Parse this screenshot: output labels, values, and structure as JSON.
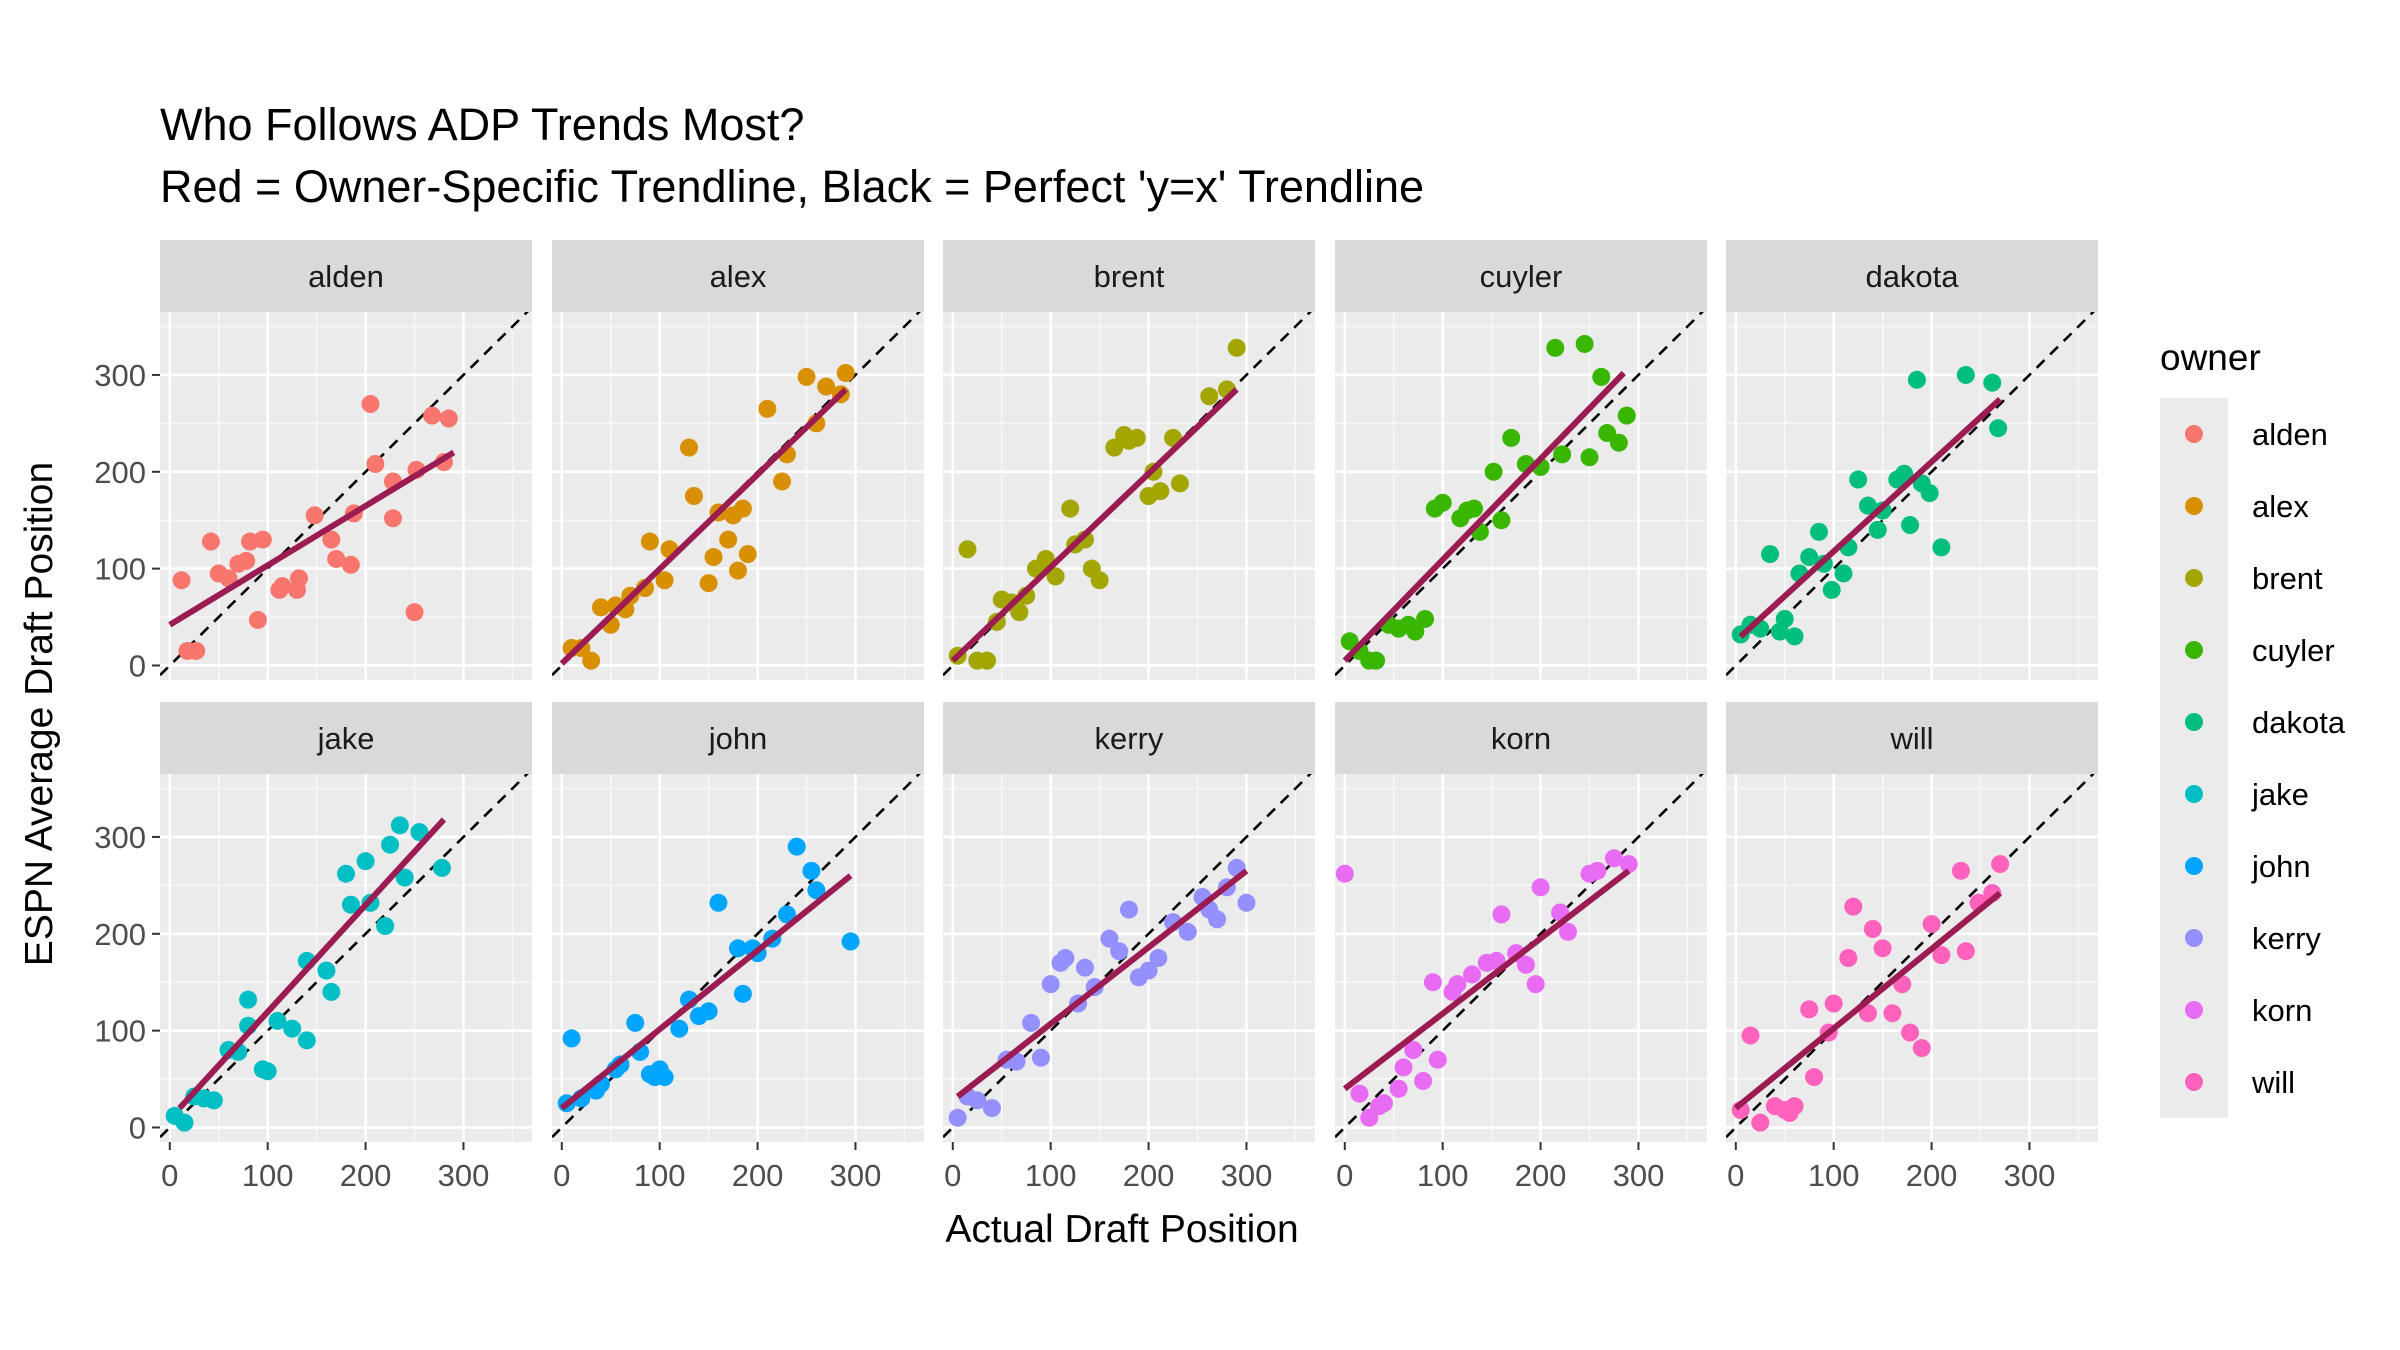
{
  "chart_data": {
    "type": "scatter",
    "title_lines": [
      "Who Follows ADP Trends Most?",
      "Red = Owner-Specific Trendline, Black = Perfect 'y=x' Trendline"
    ],
    "xlabel": "Actual Draft Position",
    "ylabel": "ESPN Average Draft Position",
    "xlim": [
      -10,
      370
    ],
    "ylim": [
      -15,
      365
    ],
    "x_ticks": [
      0,
      100,
      200,
      300
    ],
    "y_ticks": [
      0,
      100,
      200,
      300
    ],
    "x_tick_labels": [
      "0",
      "100",
      "200",
      "300"
    ],
    "y_tick_labels": [
      "0",
      "100",
      "200",
      "300"
    ],
    "reference_line": "y=x",
    "reference_line_color": "#000000",
    "trendline_color": "#9b1b53",
    "panel_background": "#ebebeb",
    "strip_background": "#d9d9d9",
    "grid": true,
    "legend": {
      "title": "owner",
      "position": "right"
    },
    "panels": [
      {
        "owner": "alden",
        "color": "#F8766D",
        "trend": [
          [
            0,
            42
          ],
          [
            290,
            220
          ]
        ],
        "points": [
          [
            12,
            88
          ],
          [
            18,
            15
          ],
          [
            27,
            15
          ],
          [
            42,
            128
          ],
          [
            50,
            95
          ],
          [
            60,
            90
          ],
          [
            70,
            105
          ],
          [
            78,
            108
          ],
          [
            82,
            128
          ],
          [
            90,
            47
          ],
          [
            95,
            130
          ],
          [
            112,
            78
          ],
          [
            115,
            82
          ],
          [
            130,
            78
          ],
          [
            132,
            90
          ],
          [
            148,
            155
          ],
          [
            165,
            130
          ],
          [
            170,
            110
          ],
          [
            185,
            104
          ],
          [
            188,
            157
          ],
          [
            205,
            270
          ],
          [
            210,
            208
          ],
          [
            228,
            152
          ],
          [
            228,
            190
          ],
          [
            250,
            55
          ],
          [
            252,
            202
          ],
          [
            268,
            258
          ],
          [
            280,
            210
          ],
          [
            285,
            255
          ]
        ]
      },
      {
        "owner": "alex",
        "color": "#D89000",
        "trend": [
          [
            0,
            2
          ],
          [
            290,
            285
          ]
        ],
        "points": [
          [
            10,
            18
          ],
          [
            20,
            18
          ],
          [
            30,
            5
          ],
          [
            40,
            60
          ],
          [
            50,
            42
          ],
          [
            55,
            62
          ],
          [
            65,
            58
          ],
          [
            70,
            72
          ],
          [
            85,
            80
          ],
          [
            90,
            128
          ],
          [
            105,
            88
          ],
          [
            110,
            120
          ],
          [
            130,
            225
          ],
          [
            135,
            175
          ],
          [
            150,
            85
          ],
          [
            155,
            112
          ],
          [
            160,
            158
          ],
          [
            170,
            130
          ],
          [
            175,
            155
          ],
          [
            180,
            98
          ],
          [
            185,
            162
          ],
          [
            190,
            115
          ],
          [
            210,
            265
          ],
          [
            225,
            190
          ],
          [
            230,
            218
          ],
          [
            250,
            298
          ],
          [
            260,
            250
          ],
          [
            270,
            288
          ],
          [
            285,
            280
          ],
          [
            290,
            302
          ]
        ]
      },
      {
        "owner": "brent",
        "color": "#A3A500",
        "trend": [
          [
            0,
            5
          ],
          [
            290,
            285
          ]
        ],
        "points": [
          [
            5,
            10
          ],
          [
            15,
            120
          ],
          [
            25,
            5
          ],
          [
            35,
            5
          ],
          [
            45,
            45
          ],
          [
            50,
            68
          ],
          [
            60,
            65
          ],
          [
            68,
            55
          ],
          [
            75,
            72
          ],
          [
            85,
            100
          ],
          [
            95,
            110
          ],
          [
            105,
            92
          ],
          [
            120,
            162
          ],
          [
            125,
            125
          ],
          [
            135,
            130
          ],
          [
            142,
            100
          ],
          [
            150,
            88
          ],
          [
            165,
            225
          ],
          [
            175,
            238
          ],
          [
            180,
            232
          ],
          [
            188,
            235
          ],
          [
            200,
            175
          ],
          [
            205,
            200
          ],
          [
            212,
            180
          ],
          [
            225,
            235
          ],
          [
            232,
            188
          ],
          [
            262,
            278
          ],
          [
            280,
            285
          ],
          [
            290,
            328
          ]
        ]
      },
      {
        "owner": "cuyler",
        "color": "#39B600",
        "trend": [
          [
            0,
            5
          ],
          [
            285,
            302
          ]
        ],
        "points": [
          [
            5,
            25
          ],
          [
            15,
            15
          ],
          [
            25,
            5
          ],
          [
            32,
            5
          ],
          [
            45,
            42
          ],
          [
            55,
            38
          ],
          [
            65,
            42
          ],
          [
            72,
            35
          ],
          [
            82,
            48
          ],
          [
            92,
            162
          ],
          [
            100,
            168
          ],
          [
            118,
            152
          ],
          [
            125,
            160
          ],
          [
            132,
            162
          ],
          [
            138,
            138
          ],
          [
            152,
            200
          ],
          [
            160,
            150
          ],
          [
            170,
            235
          ],
          [
            185,
            208
          ],
          [
            200,
            205
          ],
          [
            215,
            328
          ],
          [
            222,
            218
          ],
          [
            245,
            332
          ],
          [
            250,
            215
          ],
          [
            262,
            298
          ],
          [
            268,
            240
          ],
          [
            280,
            230
          ],
          [
            288,
            258
          ]
        ]
      },
      {
        "owner": "dakota",
        "color": "#00BF7D",
        "trend": [
          [
            5,
            30
          ],
          [
            270,
            275
          ]
        ],
        "points": [
          [
            5,
            32
          ],
          [
            15,
            42
          ],
          [
            25,
            38
          ],
          [
            35,
            115
          ],
          [
            45,
            35
          ],
          [
            50,
            48
          ],
          [
            60,
            30
          ],
          [
            65,
            95
          ],
          [
            75,
            112
          ],
          [
            85,
            138
          ],
          [
            90,
            105
          ],
          [
            98,
            78
          ],
          [
            110,
            95
          ],
          [
            115,
            122
          ],
          [
            125,
            192
          ],
          [
            135,
            165
          ],
          [
            145,
            140
          ],
          [
            150,
            160
          ],
          [
            165,
            192
          ],
          [
            172,
            198
          ],
          [
            178,
            145
          ],
          [
            185,
            295
          ],
          [
            190,
            188
          ],
          [
            198,
            178
          ],
          [
            210,
            122
          ],
          [
            235,
            300
          ],
          [
            262,
            292
          ],
          [
            268,
            245
          ]
        ]
      },
      {
        "owner": "jake",
        "color": "#00BFC4",
        "trend": [
          [
            10,
            20
          ],
          [
            280,
            318
          ]
        ],
        "points": [
          [
            5,
            12
          ],
          [
            15,
            5
          ],
          [
            25,
            32
          ],
          [
            35,
            30
          ],
          [
            45,
            28
          ],
          [
            60,
            80
          ],
          [
            70,
            78
          ],
          [
            80,
            132
          ],
          [
            80,
            105
          ],
          [
            95,
            60
          ],
          [
            100,
            58
          ],
          [
            110,
            110
          ],
          [
            125,
            102
          ],
          [
            140,
            172
          ],
          [
            140,
            90
          ],
          [
            160,
            162
          ],
          [
            165,
            140
          ],
          [
            180,
            262
          ],
          [
            185,
            230
          ],
          [
            200,
            275
          ],
          [
            205,
            232
          ],
          [
            220,
            208
          ],
          [
            225,
            292
          ],
          [
            235,
            312
          ],
          [
            240,
            258
          ],
          [
            255,
            305
          ],
          [
            278,
            268
          ]
        ]
      },
      {
        "owner": "john",
        "color": "#00A5FF",
        "trend": [
          [
            0,
            20
          ],
          [
            295,
            260
          ]
        ],
        "points": [
          [
            5,
            25
          ],
          [
            10,
            92
          ],
          [
            20,
            30
          ],
          [
            35,
            38
          ],
          [
            40,
            45
          ],
          [
            55,
            60
          ],
          [
            60,
            65
          ],
          [
            75,
            108
          ],
          [
            80,
            78
          ],
          [
            90,
            55
          ],
          [
            95,
            52
          ],
          [
            100,
            60
          ],
          [
            105,
            52
          ],
          [
            120,
            102
          ],
          [
            130,
            132
          ],
          [
            140,
            115
          ],
          [
            150,
            120
          ],
          [
            160,
            232
          ],
          [
            180,
            185
          ],
          [
            185,
            138
          ],
          [
            195,
            185
          ],
          [
            200,
            180
          ],
          [
            215,
            195
          ],
          [
            230,
            220
          ],
          [
            240,
            290
          ],
          [
            255,
            265
          ],
          [
            260,
            245
          ],
          [
            295,
            192
          ]
        ]
      },
      {
        "owner": "kerry",
        "color": "#9590FF",
        "trend": [
          [
            5,
            32
          ],
          [
            300,
            265
          ]
        ],
        "points": [
          [
            5,
            10
          ],
          [
            15,
            32
          ],
          [
            25,
            28
          ],
          [
            40,
            20
          ],
          [
            55,
            70
          ],
          [
            65,
            68
          ],
          [
            80,
            108
          ],
          [
            90,
            72
          ],
          [
            100,
            148
          ],
          [
            110,
            170
          ],
          [
            115,
            175
          ],
          [
            128,
            128
          ],
          [
            135,
            165
          ],
          [
            145,
            145
          ],
          [
            160,
            195
          ],
          [
            170,
            182
          ],
          [
            180,
            225
          ],
          [
            190,
            155
          ],
          [
            200,
            162
          ],
          [
            210,
            175
          ],
          [
            225,
            212
          ],
          [
            240,
            202
          ],
          [
            255,
            238
          ],
          [
            262,
            225
          ],
          [
            270,
            215
          ],
          [
            280,
            248
          ],
          [
            290,
            268
          ],
          [
            300,
            232
          ]
        ]
      },
      {
        "owner": "korn",
        "color": "#E76BF3",
        "trend": [
          [
            0,
            40
          ],
          [
            290,
            265
          ]
        ],
        "points": [
          [
            0,
            262
          ],
          [
            15,
            35
          ],
          [
            25,
            10
          ],
          [
            35,
            22
          ],
          [
            40,
            25
          ],
          [
            55,
            40
          ],
          [
            60,
            62
          ],
          [
            70,
            80
          ],
          [
            80,
            48
          ],
          [
            90,
            150
          ],
          [
            95,
            70
          ],
          [
            110,
            140
          ],
          [
            115,
            148
          ],
          [
            130,
            158
          ],
          [
            145,
            170
          ],
          [
            155,
            172
          ],
          [
            160,
            220
          ],
          [
            175,
            180
          ],
          [
            185,
            168
          ],
          [
            195,
            148
          ],
          [
            200,
            248
          ],
          [
            220,
            222
          ],
          [
            228,
            202
          ],
          [
            250,
            262
          ],
          [
            258,
            265
          ],
          [
            275,
            278
          ],
          [
            290,
            272
          ]
        ]
      },
      {
        "owner": "will",
        "color": "#FF62BC",
        "trend": [
          [
            0,
            20
          ],
          [
            270,
            242
          ]
        ],
        "points": [
          [
            5,
            18
          ],
          [
            15,
            95
          ],
          [
            25,
            5
          ],
          [
            40,
            22
          ],
          [
            50,
            18
          ],
          [
            55,
            15
          ],
          [
            60,
            22
          ],
          [
            75,
            122
          ],
          [
            80,
            52
          ],
          [
            95,
            98
          ],
          [
            100,
            128
          ],
          [
            115,
            175
          ],
          [
            120,
            228
          ],
          [
            135,
            118
          ],
          [
            140,
            205
          ],
          [
            150,
            185
          ],
          [
            160,
            118
          ],
          [
            170,
            148
          ],
          [
            178,
            98
          ],
          [
            190,
            82
          ],
          [
            200,
            210
          ],
          [
            210,
            178
          ],
          [
            230,
            265
          ],
          [
            235,
            182
          ],
          [
            248,
            232
          ],
          [
            262,
            242
          ],
          [
            270,
            272
          ]
        ]
      }
    ]
  }
}
